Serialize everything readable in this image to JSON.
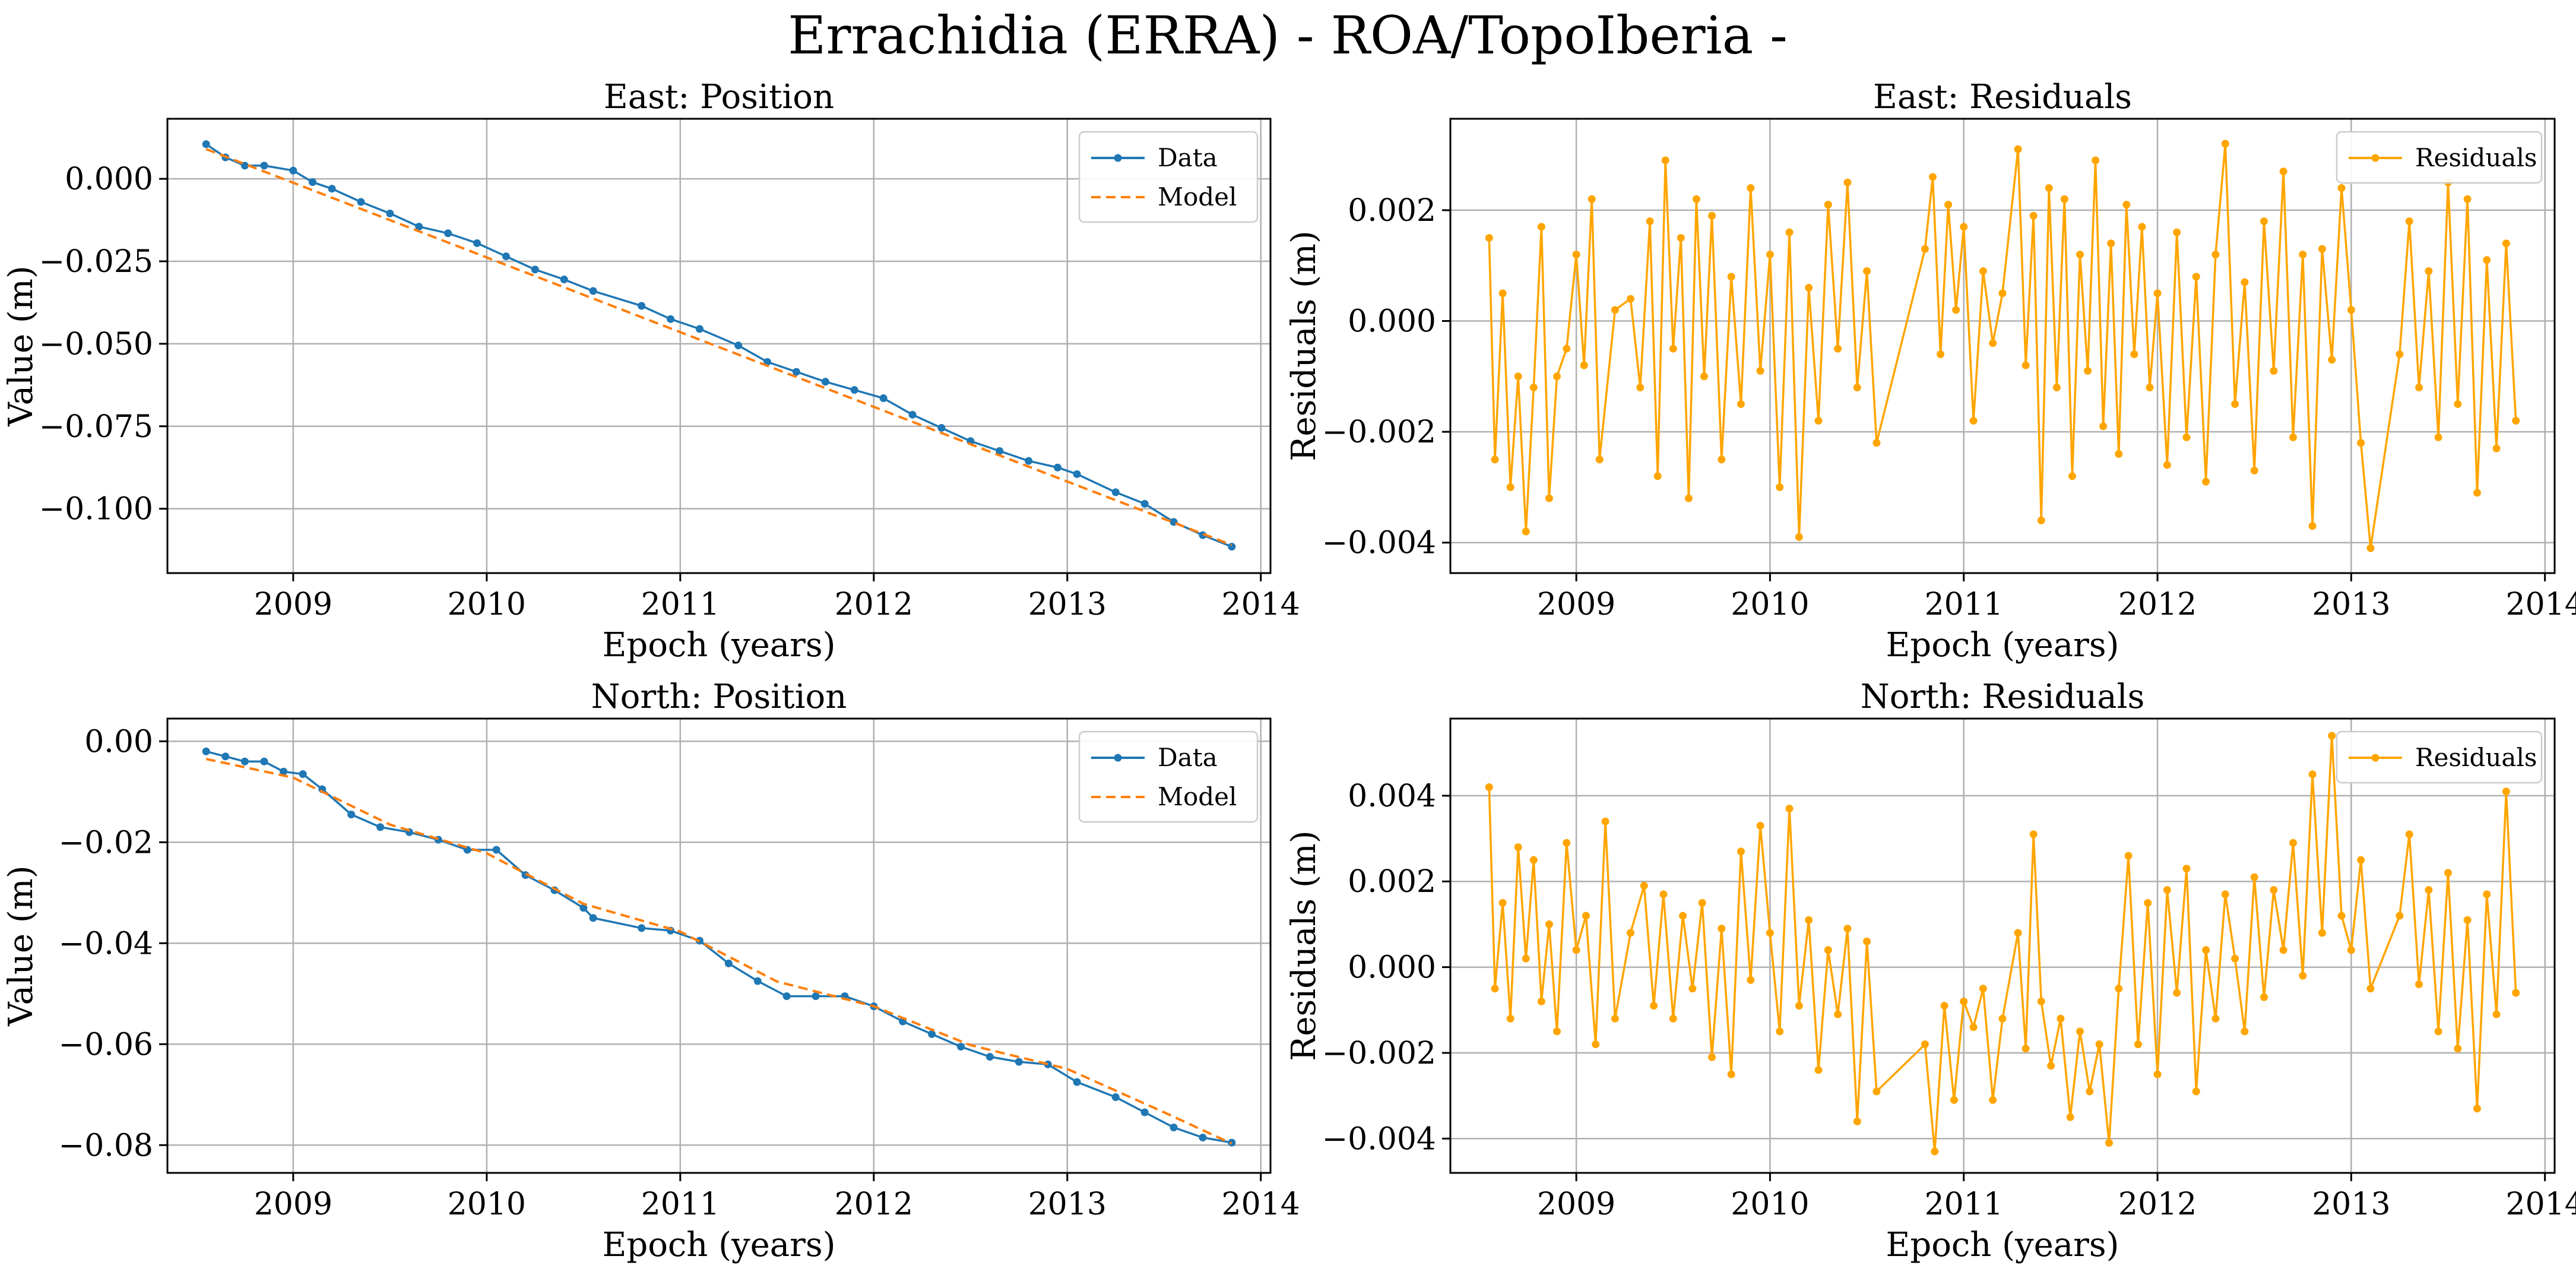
{
  "figure": {
    "title": "Errachidia (ERRA) - ROA/TopoIberia -"
  },
  "colors": {
    "data": "#1f77b4",
    "model": "#ff7f0e",
    "residuals": "#ffa500",
    "grid": "#b0b0b0",
    "axis": "#000000"
  },
  "chart_data": [
    {
      "id": "east_position",
      "type": "line",
      "title": "East: Position",
      "xlabel": "Epoch (years)",
      "ylabel": "Value (m)",
      "xlim": [
        2008.35,
        2014.05
      ],
      "ylim": [
        -0.1195,
        0.0182
      ],
      "xticks": [
        2009,
        2010,
        2011,
        2012,
        2013,
        2014
      ],
      "yticks": [
        0.0,
        -0.025,
        -0.05,
        -0.075,
        -0.1
      ],
      "ytick_labels": [
        "0.000",
        "−0.025",
        "−0.050",
        "−0.075",
        "−0.100"
      ],
      "grid": true,
      "legend": "top-right",
      "series": [
        {
          "name": "Data",
          "style": "line-dots",
          "color": "#1f77b4",
          "x": [
            2008.55,
            2008.65,
            2008.75,
            2008.85,
            2009.0,
            2009.1,
            2009.2,
            2009.35,
            2009.5,
            2009.65,
            2009.8,
            2009.95,
            2010.1,
            2010.25,
            2010.4,
            2010.55,
            2010.8,
            2010.95,
            2011.1,
            2011.3,
            2011.45,
            2011.6,
            2011.75,
            2011.9,
            2012.05,
            2012.2,
            2012.35,
            2012.5,
            2012.65,
            2012.8,
            2012.95,
            2013.05,
            2013.25,
            2013.4,
            2013.55,
            2013.7,
            2013.85
          ],
          "values": [
            0.0105,
            0.0065,
            0.004,
            0.004,
            0.0025,
            -0.001,
            -0.003,
            -0.007,
            -0.0105,
            -0.0145,
            -0.0165,
            -0.0195,
            -0.0235,
            -0.0275,
            -0.0305,
            -0.034,
            -0.0385,
            -0.0425,
            -0.0455,
            -0.0505,
            -0.0555,
            -0.0585,
            -0.0615,
            -0.064,
            -0.0665,
            -0.0715,
            -0.0755,
            -0.0795,
            -0.0825,
            -0.0855,
            -0.0875,
            -0.0895,
            -0.095,
            -0.0985,
            -0.104,
            -0.108,
            -0.1115
          ]
        },
        {
          "name": "Model",
          "style": "dashed",
          "color": "#ff7f0e",
          "x": [
            2008.55,
            2013.85
          ],
          "values": [
            0.009,
            -0.111
          ]
        }
      ]
    },
    {
      "id": "east_residuals",
      "type": "line",
      "title": "East: Residuals",
      "xlabel": "Epoch (years)",
      "ylabel": "Residuals (m)",
      "xlim": [
        2008.35,
        2014.05
      ],
      "ylim": [
        -0.00455,
        0.00365
      ],
      "xticks": [
        2009,
        2010,
        2011,
        2012,
        2013,
        2014
      ],
      "yticks": [
        0.002,
        0.0,
        -0.002,
        -0.004
      ],
      "ytick_labels": [
        "0.002",
        "0.000",
        "−0.002",
        "−0.004"
      ],
      "grid": true,
      "legend": "top-right",
      "series": [
        {
          "name": "Residuals",
          "style": "line-dots",
          "color": "#ffa500",
          "x": [
            2008.55,
            2008.58,
            2008.62,
            2008.66,
            2008.7,
            2008.74,
            2008.78,
            2008.82,
            2008.86,
            2008.9,
            2008.95,
            2009.0,
            2009.04,
            2009.08,
            2009.12,
            2009.2,
            2009.28,
            2009.33,
            2009.38,
            2009.42,
            2009.46,
            2009.5,
            2009.54,
            2009.58,
            2009.62,
            2009.66,
            2009.7,
            2009.75,
            2009.8,
            2009.85,
            2009.9,
            2009.95,
            2010.0,
            2010.05,
            2010.1,
            2010.15,
            2010.2,
            2010.25,
            2010.3,
            2010.35,
            2010.4,
            2010.45,
            2010.5,
            2010.55,
            2010.8,
            2010.84,
            2010.88,
            2010.92,
            2010.96,
            2011.0,
            2011.05,
            2011.1,
            2011.15,
            2011.2,
            2011.28,
            2011.32,
            2011.36,
            2011.4,
            2011.44,
            2011.48,
            2011.52,
            2011.56,
            2011.6,
            2011.64,
            2011.68,
            2011.72,
            2011.76,
            2011.8,
            2011.84,
            2011.88,
            2011.92,
            2011.96,
            2012.0,
            2012.05,
            2012.1,
            2012.15,
            2012.2,
            2012.25,
            2012.3,
            2012.35,
            2012.4,
            2012.45,
            2012.5,
            2012.55,
            2012.6,
            2012.65,
            2012.7,
            2012.75,
            2012.8,
            2012.85,
            2012.9,
            2012.95,
            2013.0,
            2013.05,
            2013.1,
            2013.25,
            2013.3,
            2013.35,
            2013.4,
            2013.45,
            2013.5,
            2013.55,
            2013.6,
            2013.65,
            2013.7,
            2013.75,
            2013.8,
            2013.85
          ],
          "values": [
            0.0015,
            -0.0025,
            0.0005,
            -0.003,
            -0.001,
            -0.0038,
            -0.0012,
            0.0017,
            -0.0032,
            -0.001,
            -0.0005,
            0.0012,
            -0.0008,
            0.0022,
            -0.0025,
            0.0002,
            0.0004,
            -0.0012,
            0.0018,
            -0.0028,
            0.0029,
            -0.0005,
            0.0015,
            -0.0032,
            0.0022,
            -0.001,
            0.0019,
            -0.0025,
            0.0008,
            -0.0015,
            0.0024,
            -0.0009,
            0.0012,
            -0.003,
            0.0016,
            -0.0039,
            0.0006,
            -0.0018,
            0.0021,
            -0.0005,
            0.0025,
            -0.0012,
            0.0009,
            -0.0022,
            0.0013,
            0.0026,
            -0.0006,
            0.0021,
            0.0002,
            0.0017,
            -0.0018,
            0.0009,
            -0.0004,
            0.0005,
            0.0031,
            -0.0008,
            0.0019,
            -0.0036,
            0.0024,
            -0.0012,
            0.0022,
            -0.0028,
            0.0012,
            -0.0009,
            0.0029,
            -0.0019,
            0.0014,
            -0.0024,
            0.0021,
            -0.0006,
            0.0017,
            -0.0012,
            0.0005,
            -0.0026,
            0.0016,
            -0.0021,
            0.0008,
            -0.0029,
            0.0012,
            0.0032,
            -0.0015,
            0.0007,
            -0.0027,
            0.0018,
            -0.0009,
            0.0027,
            -0.0021,
            0.0012,
            -0.0037,
            0.0013,
            -0.0007,
            0.0024,
            0.0002,
            -0.0022,
            -0.0041,
            -0.0006,
            0.0018,
            -0.0012,
            0.0009,
            -0.0021,
            0.0025,
            -0.0015,
            0.0022,
            -0.0031,
            0.0011,
            -0.0023,
            0.0014,
            -0.0018
          ]
        }
      ]
    },
    {
      "id": "north_position",
      "type": "line",
      "title": "North: Position",
      "xlabel": "Epoch (years)",
      "ylabel": "Value (m)",
      "xlim": [
        2008.35,
        2014.05
      ],
      "ylim": [
        -0.0855,
        0.0045
      ],
      "xticks": [
        2009,
        2010,
        2011,
        2012,
        2013,
        2014
      ],
      "yticks": [
        0.0,
        -0.02,
        -0.04,
        -0.06,
        -0.08
      ],
      "ytick_labels": [
        "0.00",
        "−0.02",
        "−0.04",
        "−0.06",
        "−0.08"
      ],
      "grid": true,
      "legend": "top-right",
      "series": [
        {
          "name": "Data",
          "style": "line-dots",
          "color": "#1f77b4",
          "x": [
            2008.55,
            2008.65,
            2008.75,
            2008.85,
            2008.95,
            2009.05,
            2009.15,
            2009.3,
            2009.45,
            2009.6,
            2009.75,
            2009.9,
            2010.05,
            2010.2,
            2010.35,
            2010.5,
            2010.55,
            2010.8,
            2010.95,
            2011.1,
            2011.25,
            2011.4,
            2011.55,
            2011.7,
            2011.85,
            2012.0,
            2012.15,
            2012.3,
            2012.45,
            2012.6,
            2012.75,
            2012.9,
            2013.05,
            2013.25,
            2013.4,
            2013.55,
            2013.7,
            2013.85
          ],
          "values": [
            -0.002,
            -0.003,
            -0.004,
            -0.004,
            -0.006,
            -0.0065,
            -0.0095,
            -0.0145,
            -0.017,
            -0.018,
            -0.0195,
            -0.0215,
            -0.0215,
            -0.0265,
            -0.0295,
            -0.033,
            -0.035,
            -0.037,
            -0.0375,
            -0.0395,
            -0.044,
            -0.0475,
            -0.0505,
            -0.0505,
            -0.0505,
            -0.0525,
            -0.0555,
            -0.058,
            -0.0605,
            -0.0625,
            -0.0635,
            -0.064,
            -0.0675,
            -0.0705,
            -0.0735,
            -0.0765,
            -0.0785,
            -0.0795
          ]
        },
        {
          "name": "Model",
          "style": "dashed",
          "color": "#ff7f0e",
          "x": [
            2008.55,
            2009.0,
            2009.5,
            2010.0,
            2010.5,
            2011.0,
            2011.5,
            2012.0,
            2012.5,
            2013.0,
            2013.5,
            2013.85
          ],
          "values": [
            -0.0035,
            -0.0072,
            -0.0165,
            -0.0222,
            -0.0322,
            -0.0377,
            -0.0476,
            -0.0525,
            -0.0602,
            -0.0649,
            -0.0735,
            -0.0797
          ]
        }
      ]
    },
    {
      "id": "north_residuals",
      "type": "line",
      "title": "North: Residuals",
      "xlabel": "Epoch (years)",
      "ylabel": "Residuals (m)",
      "xlim": [
        2008.35,
        2014.05
      ],
      "ylim": [
        -0.0048,
        0.0058
      ],
      "xticks": [
        2009,
        2010,
        2011,
        2012,
        2013,
        2014
      ],
      "yticks": [
        0.004,
        0.002,
        0.0,
        -0.002,
        -0.004
      ],
      "ytick_labels": [
        "0.004",
        "0.002",
        "0.000",
        "−0.002",
        "−0.004"
      ],
      "grid": true,
      "legend": "top-right",
      "series": [
        {
          "name": "Residuals",
          "style": "line-dots",
          "color": "#ffa500",
          "x": [
            2008.55,
            2008.58,
            2008.62,
            2008.66,
            2008.7,
            2008.74,
            2008.78,
            2008.82,
            2008.86,
            2008.9,
            2008.95,
            2009.0,
            2009.05,
            2009.1,
            2009.15,
            2009.2,
            2009.28,
            2009.35,
            2009.4,
            2009.45,
            2009.5,
            2009.55,
            2009.6,
            2009.65,
            2009.7,
            2009.75,
            2009.8,
            2009.85,
            2009.9,
            2009.95,
            2010.0,
            2010.05,
            2010.1,
            2010.15,
            2010.2,
            2010.25,
            2010.3,
            2010.35,
            2010.4,
            2010.45,
            2010.5,
            2010.55,
            2010.8,
            2010.85,
            2010.9,
            2010.95,
            2011.0,
            2011.05,
            2011.1,
            2011.15,
            2011.2,
            2011.28,
            2011.32,
            2011.36,
            2011.4,
            2011.45,
            2011.5,
            2011.55,
            2011.6,
            2011.65,
            2011.7,
            2011.75,
            2011.8,
            2011.85,
            2011.9,
            2011.95,
            2012.0,
            2012.05,
            2012.1,
            2012.15,
            2012.2,
            2012.25,
            2012.3,
            2012.35,
            2012.4,
            2012.45,
            2012.5,
            2012.55,
            2012.6,
            2012.65,
            2012.7,
            2012.75,
            2012.8,
            2012.85,
            2012.9,
            2012.95,
            2013.0,
            2013.05,
            2013.1,
            2013.25,
            2013.3,
            2013.35,
            2013.4,
            2013.45,
            2013.5,
            2013.55,
            2013.6,
            2013.65,
            2013.7,
            2013.75,
            2013.8,
            2013.85
          ],
          "values": [
            0.0042,
            -0.0005,
            0.0015,
            -0.0012,
            0.0028,
            0.0002,
            0.0025,
            -0.0008,
            0.001,
            -0.0015,
            0.0029,
            0.0004,
            0.0012,
            -0.0018,
            0.0034,
            -0.0012,
            0.0008,
            0.0019,
            -0.0009,
            0.0017,
            -0.0012,
            0.0012,
            -0.0005,
            0.0015,
            -0.0021,
            0.0009,
            -0.0025,
            0.0027,
            -0.0003,
            0.0033,
            0.0008,
            -0.0015,
            0.0037,
            -0.0009,
            0.0011,
            -0.0024,
            0.0004,
            -0.0011,
            0.0009,
            -0.0036,
            0.0006,
            -0.0029,
            -0.0018,
            -0.0043,
            -0.0009,
            -0.0031,
            -0.0008,
            -0.0014,
            -0.0005,
            -0.0031,
            -0.0012,
            0.0008,
            -0.0019,
            0.0031,
            -0.0008,
            -0.0023,
            -0.0012,
            -0.0035,
            -0.0015,
            -0.0029,
            -0.0018,
            -0.0041,
            -0.0005,
            0.0026,
            -0.0018,
            0.0015,
            -0.0025,
            0.0018,
            -0.0006,
            0.0023,
            -0.0029,
            0.0004,
            -0.0012,
            0.0017,
            0.0002,
            -0.0015,
            0.0021,
            -0.0007,
            0.0018,
            0.0004,
            0.0029,
            -0.0002,
            0.0045,
            0.0008,
            0.0054,
            0.0012,
            0.0004,
            0.0025,
            -0.0005,
            0.0012,
            0.0031,
            -0.0004,
            0.0018,
            -0.0015,
            0.0022,
            -0.0019,
            0.0011,
            -0.0033,
            0.0017,
            -0.0011,
            0.0041,
            -0.0006
          ]
        }
      ]
    }
  ]
}
